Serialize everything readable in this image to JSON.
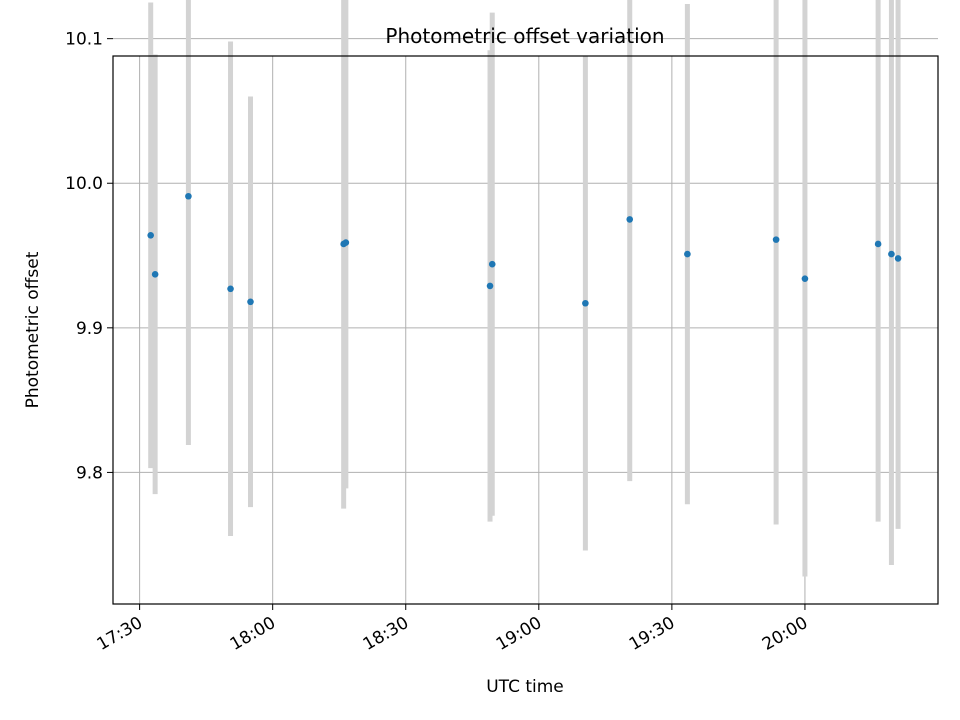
{
  "chart_data": {
    "type": "scatter",
    "title": "Photometric offset variation",
    "xlabel": "UTC time",
    "ylabel": "Photometric offset",
    "x_ticks": [
      "17:30",
      "18:00",
      "18:30",
      "19:00",
      "19:30",
      "20:00"
    ],
    "y_ticks": [
      "9.8",
      "9.9",
      "10.0",
      "10.1"
    ],
    "xlim": [
      "17:24",
      "20:30"
    ],
    "ylim": [
      9.709,
      10.088
    ],
    "grid": true,
    "colors": {
      "point": "#1f77b4",
      "errorbar": "#d3d3d3",
      "grid": "#b0b0b0"
    },
    "series": [
      {
        "points": [
          {
            "x": "17:32:30",
            "y": 9.964,
            "yerr": 0.161
          },
          {
            "x": "17:33:30",
            "y": 9.937,
            "yerr": 0.152
          },
          {
            "x": "17:41:00",
            "y": 9.991,
            "yerr": 0.172
          },
          {
            "x": "17:50:30",
            "y": 9.927,
            "yerr": 0.171
          },
          {
            "x": "17:55:00",
            "y": 9.918,
            "yerr": 0.142
          },
          {
            "x": "18:16:00",
            "y": 9.958,
            "yerr": 0.183
          },
          {
            "x": "18:16:30",
            "y": 9.959,
            "yerr": 0.17
          },
          {
            "x": "18:49:00",
            "y": 9.929,
            "yerr": 0.163
          },
          {
            "x": "18:49:30",
            "y": 9.944,
            "yerr": 0.174
          },
          {
            "x": "19:10:30",
            "y": 9.917,
            "yerr": 0.171
          },
          {
            "x": "19:20:30",
            "y": 9.975,
            "yerr": 0.181
          },
          {
            "x": "19:33:30",
            "y": 9.951,
            "yerr": 0.173
          },
          {
            "x": "19:53:30",
            "y": 9.961,
            "yerr": 0.197
          },
          {
            "x": "20:00:00",
            "y": 9.934,
            "yerr": 0.206
          },
          {
            "x": "20:16:30",
            "y": 9.958,
            "yerr": 0.192
          },
          {
            "x": "20:19:30",
            "y": 9.951,
            "yerr": 0.215
          },
          {
            "x": "20:21:00",
            "y": 9.948,
            "yerr": 0.187
          }
        ]
      }
    ]
  }
}
